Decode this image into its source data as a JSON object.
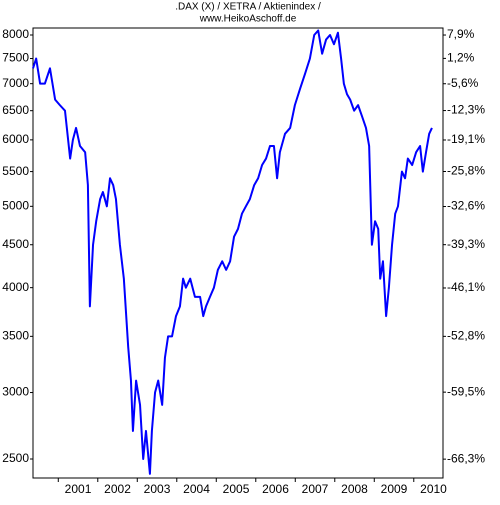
{
  "chart_data": {
    "type": "line",
    "title": ".DAX (X) / XETRA / Aktienindex /",
    "subtitle": "www.HeikoAschoff.de",
    "log_scale": true,
    "grid": false,
    "xlim": [
      2000.36,
      2010.74
    ],
    "xticks": [
      2001,
      2002,
      2003,
      2004,
      2005,
      2006,
      2007,
      2008,
      2009,
      2010
    ],
    "ylim": [
      2373,
      8155
    ],
    "yticks": [
      2500,
      3000,
      3500,
      4000,
      4500,
      5000,
      5500,
      6000,
      6500,
      7000,
      7500,
      8000
    ],
    "y2lim": [
      -68.0,
      10.0
    ],
    "y2ticks": [
      {
        "value": -66.3,
        "label": "-66,3%"
      },
      {
        "value": -59.5,
        "label": "-59,5%"
      },
      {
        "value": -52.8,
        "label": "-52,8%"
      },
      {
        "value": -46.1,
        "label": "-46,1%"
      },
      {
        "value": -39.3,
        "label": "-39,3%"
      },
      {
        "value": -32.6,
        "label": "-32,6%"
      },
      {
        "value": -25.8,
        "label": "-25,8%"
      },
      {
        "value": -19.1,
        "label": "-19,1%"
      },
      {
        "value": -12.3,
        "label": "-12,3%"
      },
      {
        "value": -5.6,
        "label": "-5,6%"
      },
      {
        "value": 1.2,
        "label": "1,2%"
      },
      {
        "value": 7.9,
        "label": "7,9%"
      }
    ],
    "x": [
      2000.36,
      2000.44,
      2000.54,
      2000.66,
      2000.79,
      2000.92,
      2001.04,
      2001.17,
      2001.3,
      2001.37,
      2001.45,
      2001.55,
      2001.68,
      2001.75,
      2001.8,
      2001.88,
      2001.96,
      2002.06,
      2002.13,
      2002.23,
      2002.31,
      2002.39,
      2002.46,
      2002.56,
      2002.66,
      2002.77,
      2002.84,
      2002.89,
      2002.97,
      2003.07,
      2003.15,
      2003.22,
      2003.32,
      2003.37,
      2003.45,
      2003.53,
      2003.63,
      2003.7,
      2003.78,
      2003.88,
      2003.98,
      2004.08,
      2004.16,
      2004.23,
      2004.34,
      2004.46,
      2004.59,
      2004.67,
      2004.74,
      2004.84,
      2004.94,
      2005.04,
      2005.15,
      2005.25,
      2005.35,
      2005.45,
      2005.55,
      2005.65,
      2005.75,
      2005.85,
      2005.96,
      2006.06,
      2006.16,
      2006.26,
      2006.36,
      2006.46,
      2006.54,
      2006.61,
      2006.74,
      2006.87,
      2006.99,
      2007.12,
      2007.25,
      2007.37,
      2007.48,
      2007.58,
      2007.68,
      2007.78,
      2007.88,
      2007.98,
      2008.08,
      2008.16,
      2008.23,
      2008.31,
      2008.39,
      2008.49,
      2008.59,
      2008.69,
      2008.79,
      2008.87,
      2008.94,
      2009.02,
      2009.1,
      2009.15,
      2009.22,
      2009.3,
      2009.37,
      2009.45,
      2009.53,
      2009.6,
      2009.7,
      2009.78,
      2009.85,
      2009.96,
      2010.06,
      2010.16,
      2010.23,
      2010.31,
      2010.39,
      2010.46
    ],
    "series": [
      {
        "name": "DAX",
        "color": "#0000ff",
        "values": [
          7300,
          7500,
          7000,
          7000,
          7300,
          6700,
          6600,
          6500,
          5700,
          6000,
          6200,
          5900,
          5800,
          5300,
          3800,
          4500,
          4800,
          5100,
          5200,
          5000,
          5400,
          5300,
          5100,
          4500,
          4100,
          3400,
          3100,
          2700,
          3100,
          2900,
          2500,
          2700,
          2400,
          2700,
          3000,
          3100,
          2900,
          3300,
          3500,
          3500,
          3700,
          3800,
          4100,
          4000,
          4100,
          3900,
          3900,
          3700,
          3800,
          3900,
          4000,
          4200,
          4300,
          4200,
          4300,
          4600,
          4700,
          4900,
          5000,
          5100,
          5300,
          5400,
          5600,
          5700,
          5900,
          5900,
          5400,
          5800,
          6100,
          6200,
          6600,
          6900,
          7200,
          7500,
          8000,
          8100,
          7600,
          7900,
          8000,
          7800,
          8050,
          7500,
          7000,
          6800,
          6700,
          6500,
          6600,
          6400,
          6200,
          5900,
          4500,
          4800,
          4700,
          4100,
          4300,
          3700,
          4000,
          4500,
          4900,
          5000,
          5500,
          5400,
          5700,
          5600,
          5800,
          5900,
          5500,
          5800,
          6100,
          6200
        ]
      }
    ]
  }
}
